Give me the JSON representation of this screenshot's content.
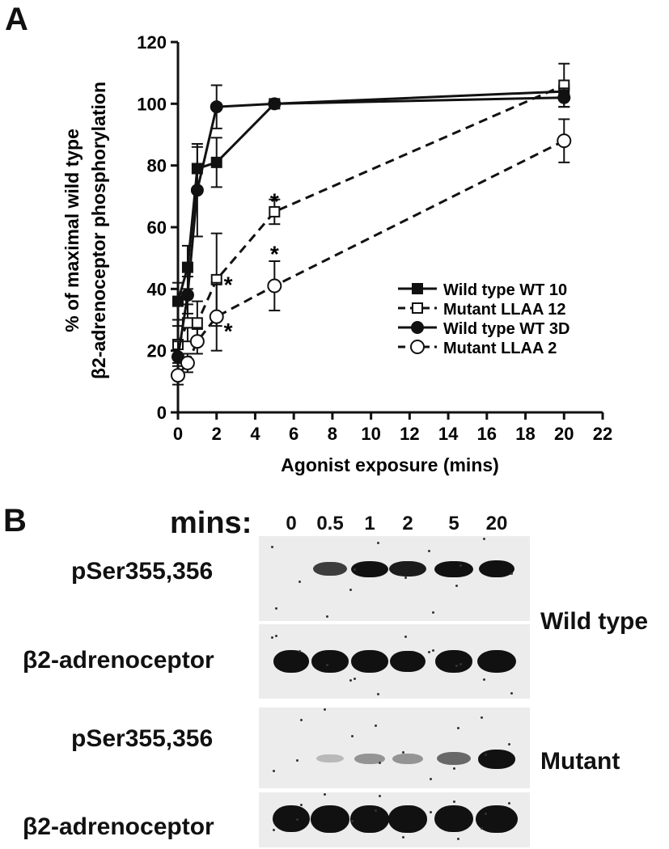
{
  "panel_a_label": "A",
  "panel_b_label": "B",
  "chart_data": {
    "type": "line",
    "xlabel": "Agonist exposure (mins)",
    "ylabel_line1": "% of maximal wild type",
    "ylabel_line2": "β2-adrenoceptor phosphorylation",
    "xlim": [
      0,
      22
    ],
    "ylim": [
      0,
      120
    ],
    "xticks": [
      0,
      2,
      4,
      6,
      8,
      10,
      12,
      14,
      16,
      18,
      20,
      22
    ],
    "yticks": [
      0,
      20,
      40,
      60,
      80,
      100,
      120
    ],
    "legend_position": "center-right",
    "series": [
      {
        "name": "Wild type WT 10",
        "marker": "filled-square",
        "line": "solid",
        "x": [
          0,
          0.5,
          1,
          2,
          5,
          20
        ],
        "y": [
          36,
          47,
          79,
          81,
          100,
          104
        ],
        "err": [
          6,
          7,
          7,
          8,
          0,
          2
        ]
      },
      {
        "name": "Mutant LLAA 12",
        "marker": "open-square",
        "line": "dashed",
        "x": [
          0,
          0.5,
          1,
          2,
          5,
          20
        ],
        "y": [
          22,
          29,
          29,
          43,
          65,
          106
        ],
        "err": [
          6,
          6,
          7,
          15,
          4,
          7
        ]
      },
      {
        "name": "Wild type WT 3D",
        "marker": "filled-circle",
        "line": "solid",
        "x": [
          0,
          0.5,
          1,
          2,
          5,
          20
        ],
        "y": [
          18,
          38,
          72,
          99,
          100,
          102
        ],
        "err": [
          5,
          6,
          15,
          7,
          0,
          3
        ]
      },
      {
        "name": "Mutant LLAA 2",
        "marker": "open-circle",
        "line": "dashed",
        "x": [
          0,
          0.5,
          1,
          2,
          5,
          20
        ],
        "y": [
          12,
          16,
          23,
          31,
          41,
          88
        ],
        "err": [
          3,
          3,
          4,
          11,
          8,
          7
        ]
      }
    ],
    "annotations": [
      {
        "text": "*",
        "x": 5,
        "y": 69
      },
      {
        "text": "*",
        "x": 5,
        "y": 52
      },
      {
        "text": "*",
        "x": 2.6,
        "y": 42
      },
      {
        "text": "*",
        "x": 2.6,
        "y": 27
      }
    ]
  },
  "blot": {
    "mins_label": "mins:",
    "timepoints": [
      "0",
      "0.5",
      "1",
      "2",
      "5",
      "20"
    ],
    "wild_type": {
      "group_label": "Wild type",
      "row1_label": "pSer355,356",
      "row2_label": "β2-adrenoceptor",
      "row1_intensity": [
        0,
        0.65,
        0.85,
        0.8,
        0.9,
        0.92
      ],
      "row2_intensity": [
        0.95,
        0.95,
        0.95,
        0.92,
        0.95,
        1.0
      ]
    },
    "mutant": {
      "group_label": "Mutant",
      "row1_label": "pSer355,356",
      "row2_label": "β2-adrenoceptor",
      "row1_intensity": [
        0,
        0.08,
        0.25,
        0.25,
        0.45,
        0.95
      ],
      "row2_intensity": [
        0.95,
        0.97,
        0.97,
        0.97,
        0.95,
        1.0
      ]
    }
  }
}
